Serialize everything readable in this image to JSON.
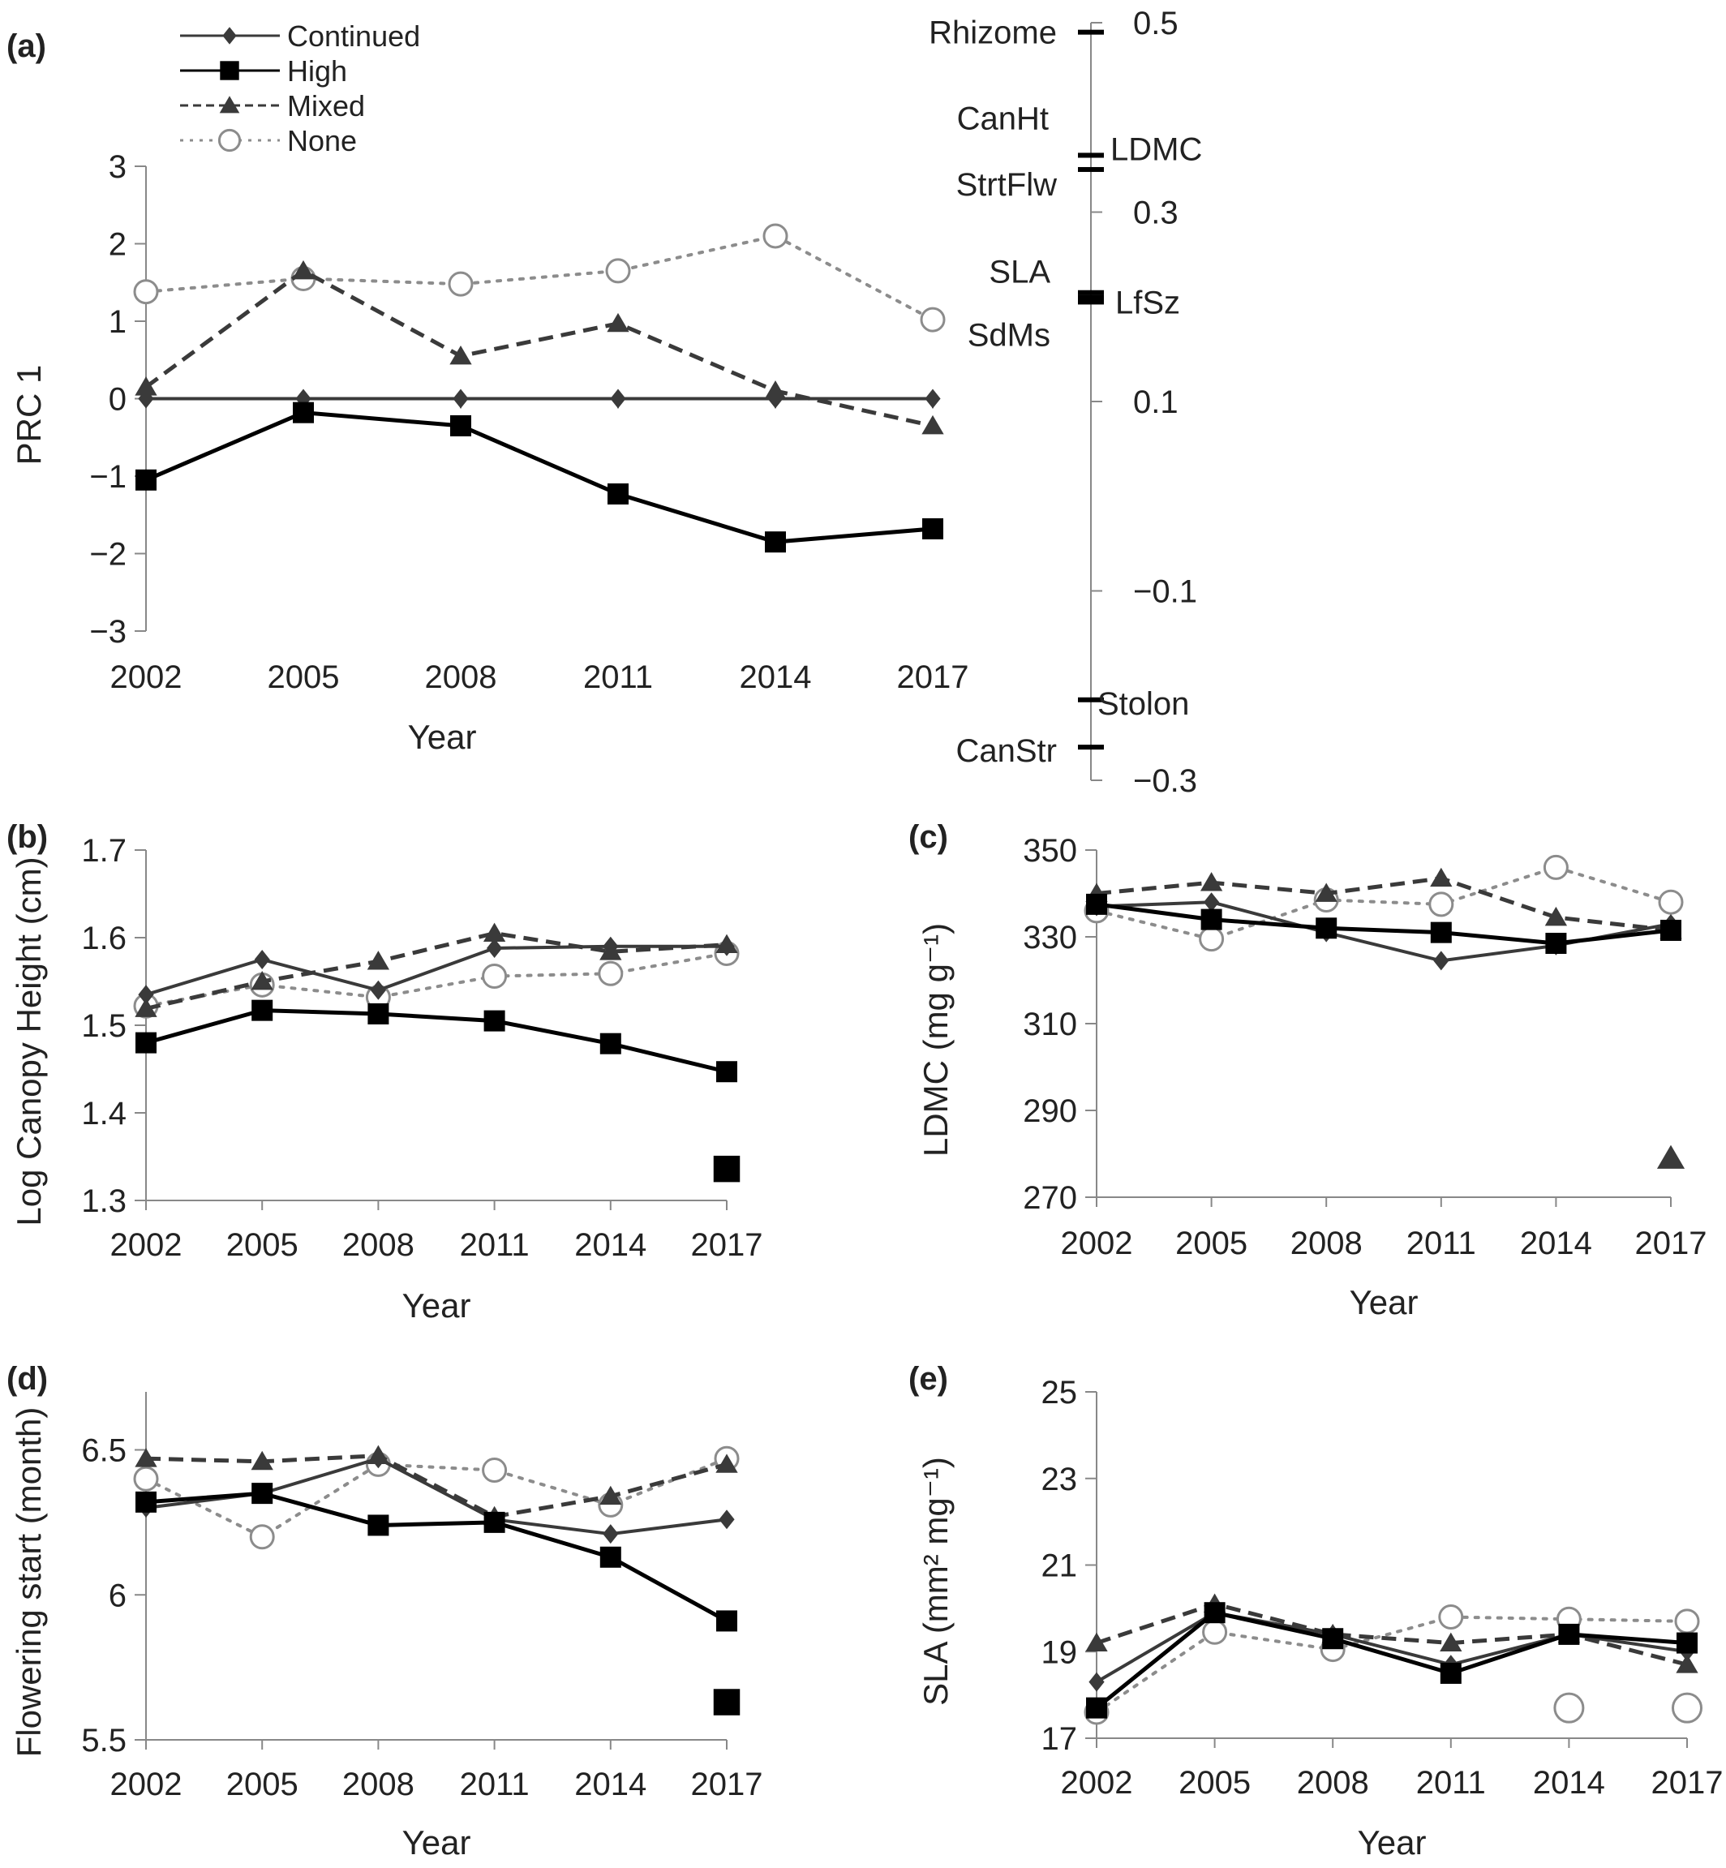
{
  "figure": {
    "colors": {
      "Continued": "#3a3a3a",
      "High": "#000000",
      "Mixed": "#3a3a3a",
      "None": "#8c8c8c",
      "axis": "#888888"
    },
    "legend": [
      {
        "name": "Continued",
        "marker": "diamond",
        "dash": "solid"
      },
      {
        "name": "High",
        "marker": "square",
        "dash": "solid"
      },
      {
        "name": "Mixed",
        "marker": "triangle",
        "dash": "dashed"
      },
      {
        "name": "None",
        "marker": "circle-open",
        "dash": "dotted"
      }
    ]
  },
  "chart_data": [
    {
      "panel": "(a)",
      "type": "line",
      "xlabel": "Year",
      "ylabel": "PRC 1",
      "x": [
        2002,
        2005,
        2008,
        2011,
        2014,
        2017
      ],
      "ylim": [
        -3,
        3
      ],
      "yticks": [
        3,
        2,
        1,
        0,
        -1,
        -2,
        -3
      ],
      "ytick_labels": [
        "3",
        "2",
        "1",
        "0",
        "−1",
        "−2",
        "−3"
      ],
      "series": [
        {
          "name": "Continued",
          "values": [
            0,
            0,
            0,
            0,
            0,
            0
          ]
        },
        {
          "name": "High",
          "values": [
            -1.05,
            -0.18,
            -0.35,
            -1.23,
            -1.85,
            -1.68
          ]
        },
        {
          "name": "Mixed",
          "values": [
            0.15,
            1.65,
            0.55,
            0.97,
            0.1,
            -0.35
          ]
        },
        {
          "name": "None",
          "values": [
            1.38,
            1.55,
            1.48,
            1.65,
            2.1,
            1.02
          ]
        }
      ],
      "trait_axis": {
        "ylim": [
          -0.3,
          0.5
        ],
        "ticks": [
          0.5,
          0.3,
          0.1,
          -0.1,
          -0.3
        ],
        "tick_labels": [
          "0.5",
          "0.3",
          "0.1",
          "−0.1",
          "−0.3"
        ],
        "loadings": [
          {
            "name": "Rhizome",
            "value": 0.49,
            "side": "left"
          },
          {
            "name": "CanHt",
            "value": 0.36,
            "side": "left"
          },
          {
            "name": "LDMC",
            "value": 0.36,
            "side": "right"
          },
          {
            "name": "StrtFlw",
            "value": 0.345,
            "side": "left"
          },
          {
            "name": "SLA",
            "value": 0.215,
            "side": "left"
          },
          {
            "name": "LfSz",
            "value": 0.21,
            "side": "right"
          },
          {
            "name": "SdMs",
            "value": 0.205,
            "side": "left"
          },
          {
            "name": "Stolon",
            "value": -0.215,
            "side": "right"
          },
          {
            "name": "CanStr",
            "value": -0.265,
            "side": "left"
          }
        ]
      }
    },
    {
      "panel": "(b)",
      "type": "line",
      "xlabel": "Year",
      "ylabel": "Log Canopy Height (cm)",
      "x": [
        2002,
        2005,
        2008,
        2011,
        2014,
        2017
      ],
      "ylim": [
        1.3,
        1.7
      ],
      "yticks": [
        1.7,
        1.6,
        1.5,
        1.4,
        1.3
      ],
      "ytick_labels": [
        "1.7",
        "1.6",
        "1.5",
        "1.4",
        "1.3"
      ],
      "series": [
        {
          "name": "Continued",
          "values": [
            1.535,
            1.575,
            1.54,
            1.588,
            1.59,
            1.59
          ]
        },
        {
          "name": "High",
          "values": [
            1.48,
            1.517,
            1.513,
            1.505,
            1.479,
            1.447
          ]
        },
        {
          "name": "Mixed",
          "values": [
            1.519,
            1.55,
            1.573,
            1.605,
            1.584,
            1.592
          ]
        },
        {
          "name": "None",
          "values": [
            1.522,
            1.546,
            1.532,
            1.556,
            1.559,
            1.582
          ]
        }
      ],
      "extra_points": [
        {
          "series": "High",
          "x": 2017,
          "y": 1.336
        }
      ]
    },
    {
      "panel": "(c)",
      "type": "line",
      "xlabel": "Year",
      "ylabel": "LDMC (mg g⁻¹)",
      "x": [
        2002,
        2005,
        2008,
        2011,
        2014,
        2017
      ],
      "ylim": [
        270,
        350
      ],
      "yticks": [
        350,
        330,
        310,
        290,
        270
      ],
      "ytick_labels": [
        "350",
        "330",
        "310",
        "290",
        "270"
      ],
      "series": [
        {
          "name": "Continued",
          "values": [
            337,
            338,
            331,
            324.5,
            328,
            333
          ]
        },
        {
          "name": "High",
          "values": [
            337.5,
            334,
            332,
            331,
            328.5,
            331.5
          ]
        },
        {
          "name": "Mixed",
          "values": [
            340,
            342.5,
            340,
            343.5,
            334.5,
            331.5
          ]
        },
        {
          "name": "None",
          "values": [
            336,
            329.5,
            338.5,
            337.5,
            346,
            338
          ]
        }
      ],
      "extra_points": [
        {
          "series": "Mixed",
          "x": 2017,
          "y": 279
        }
      ]
    },
    {
      "panel": "(d)",
      "type": "line",
      "xlabel": "Year",
      "ylabel": "Flowering start (month)",
      "x": [
        2002,
        2005,
        2008,
        2011,
        2014,
        2017
      ],
      "ylim": [
        5.5,
        6.7
      ],
      "yticks": [
        6.5,
        6,
        5.5
      ],
      "ytick_labels": [
        "6.5",
        "6",
        "5.5"
      ],
      "series": [
        {
          "name": "Continued",
          "values": [
            6.3,
            6.35,
            6.47,
            6.26,
            6.21,
            6.26
          ]
        },
        {
          "name": "High",
          "values": [
            6.32,
            6.35,
            6.24,
            6.25,
            6.13,
            5.91
          ]
        },
        {
          "name": "Mixed",
          "values": [
            6.47,
            6.46,
            6.48,
            6.27,
            6.34,
            6.45
          ]
        },
        {
          "name": "None",
          "values": [
            6.4,
            6.2,
            6.45,
            6.43,
            6.31,
            6.47
          ]
        }
      ],
      "extra_points": [
        {
          "series": "High",
          "x": 2017,
          "y": 5.63
        }
      ]
    },
    {
      "panel": "(e)",
      "type": "line",
      "xlabel": "Year",
      "ylabel": "SLA (mm² mg⁻¹)",
      "x": [
        2002,
        2005,
        2008,
        2011,
        2014,
        2017
      ],
      "ylim": [
        17,
        25
      ],
      "yticks": [
        25,
        23,
        21,
        19,
        17
      ],
      "ytick_labels": [
        "25",
        "23",
        "21",
        "19",
        "17"
      ],
      "series": [
        {
          "name": "Continued",
          "values": [
            18.3,
            19.9,
            19.4,
            18.7,
            19.4,
            19.0
          ]
        },
        {
          "name": "High",
          "values": [
            17.7,
            19.9,
            19.3,
            18.5,
            19.4,
            19.2
          ]
        },
        {
          "name": "Mixed",
          "values": [
            19.2,
            20.1,
            19.4,
            19.2,
            19.4,
            18.7
          ]
        },
        {
          "name": "None",
          "values": [
            17.6,
            19.45,
            19.05,
            19.8,
            19.75,
            19.7
          ]
        }
      ],
      "extra_points": [
        {
          "series": "None",
          "x": 2014,
          "y": 17.7
        },
        {
          "series": "None",
          "x": 2017,
          "y": 17.7
        }
      ]
    }
  ]
}
